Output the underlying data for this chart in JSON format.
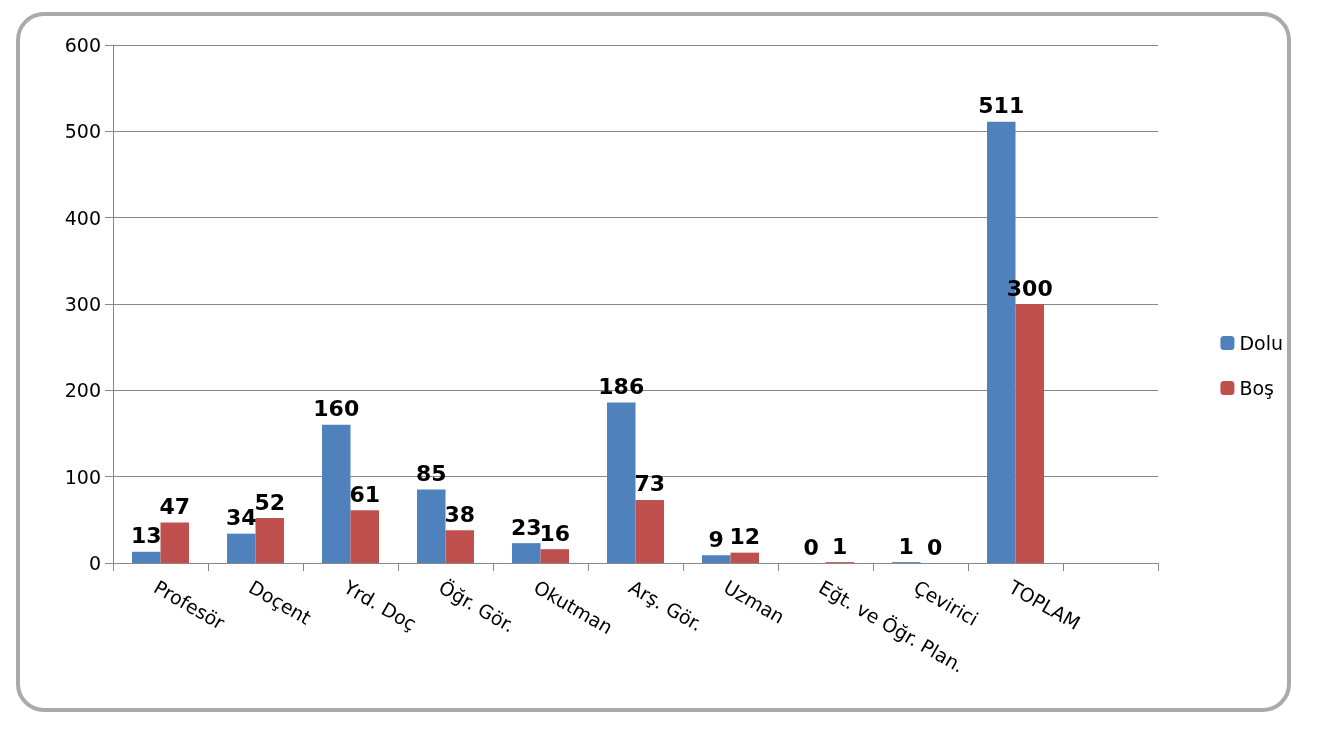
{
  "chart_data": {
    "type": "bar",
    "categories": [
      "Profesör",
      "Doçent",
      "Yrd. Doç",
      "Öğr. Gör.",
      "Okutman",
      "Arş. Gör.",
      "Uzman",
      "Eğt. ve Öğr. Plan.",
      "Çevirici",
      "TOPLAM",
      null
    ],
    "series": [
      {
        "name": "Dolu",
        "color": "#4f81bd",
        "values": [
          13,
          34,
          160,
          85,
          23,
          186,
          9,
          0,
          1,
          511,
          null
        ]
      },
      {
        "name": "Boş",
        "color": "#c0504d",
        "values": [
          47,
          52,
          61,
          38,
          16,
          73,
          12,
          1,
          0,
          300,
          null
        ]
      }
    ],
    "ylim": [
      0,
      600
    ],
    "yticks": [
      0,
      100,
      200,
      300,
      400,
      500,
      600
    ],
    "grid": "y",
    "legend": "right",
    "data_labels": true
  }
}
